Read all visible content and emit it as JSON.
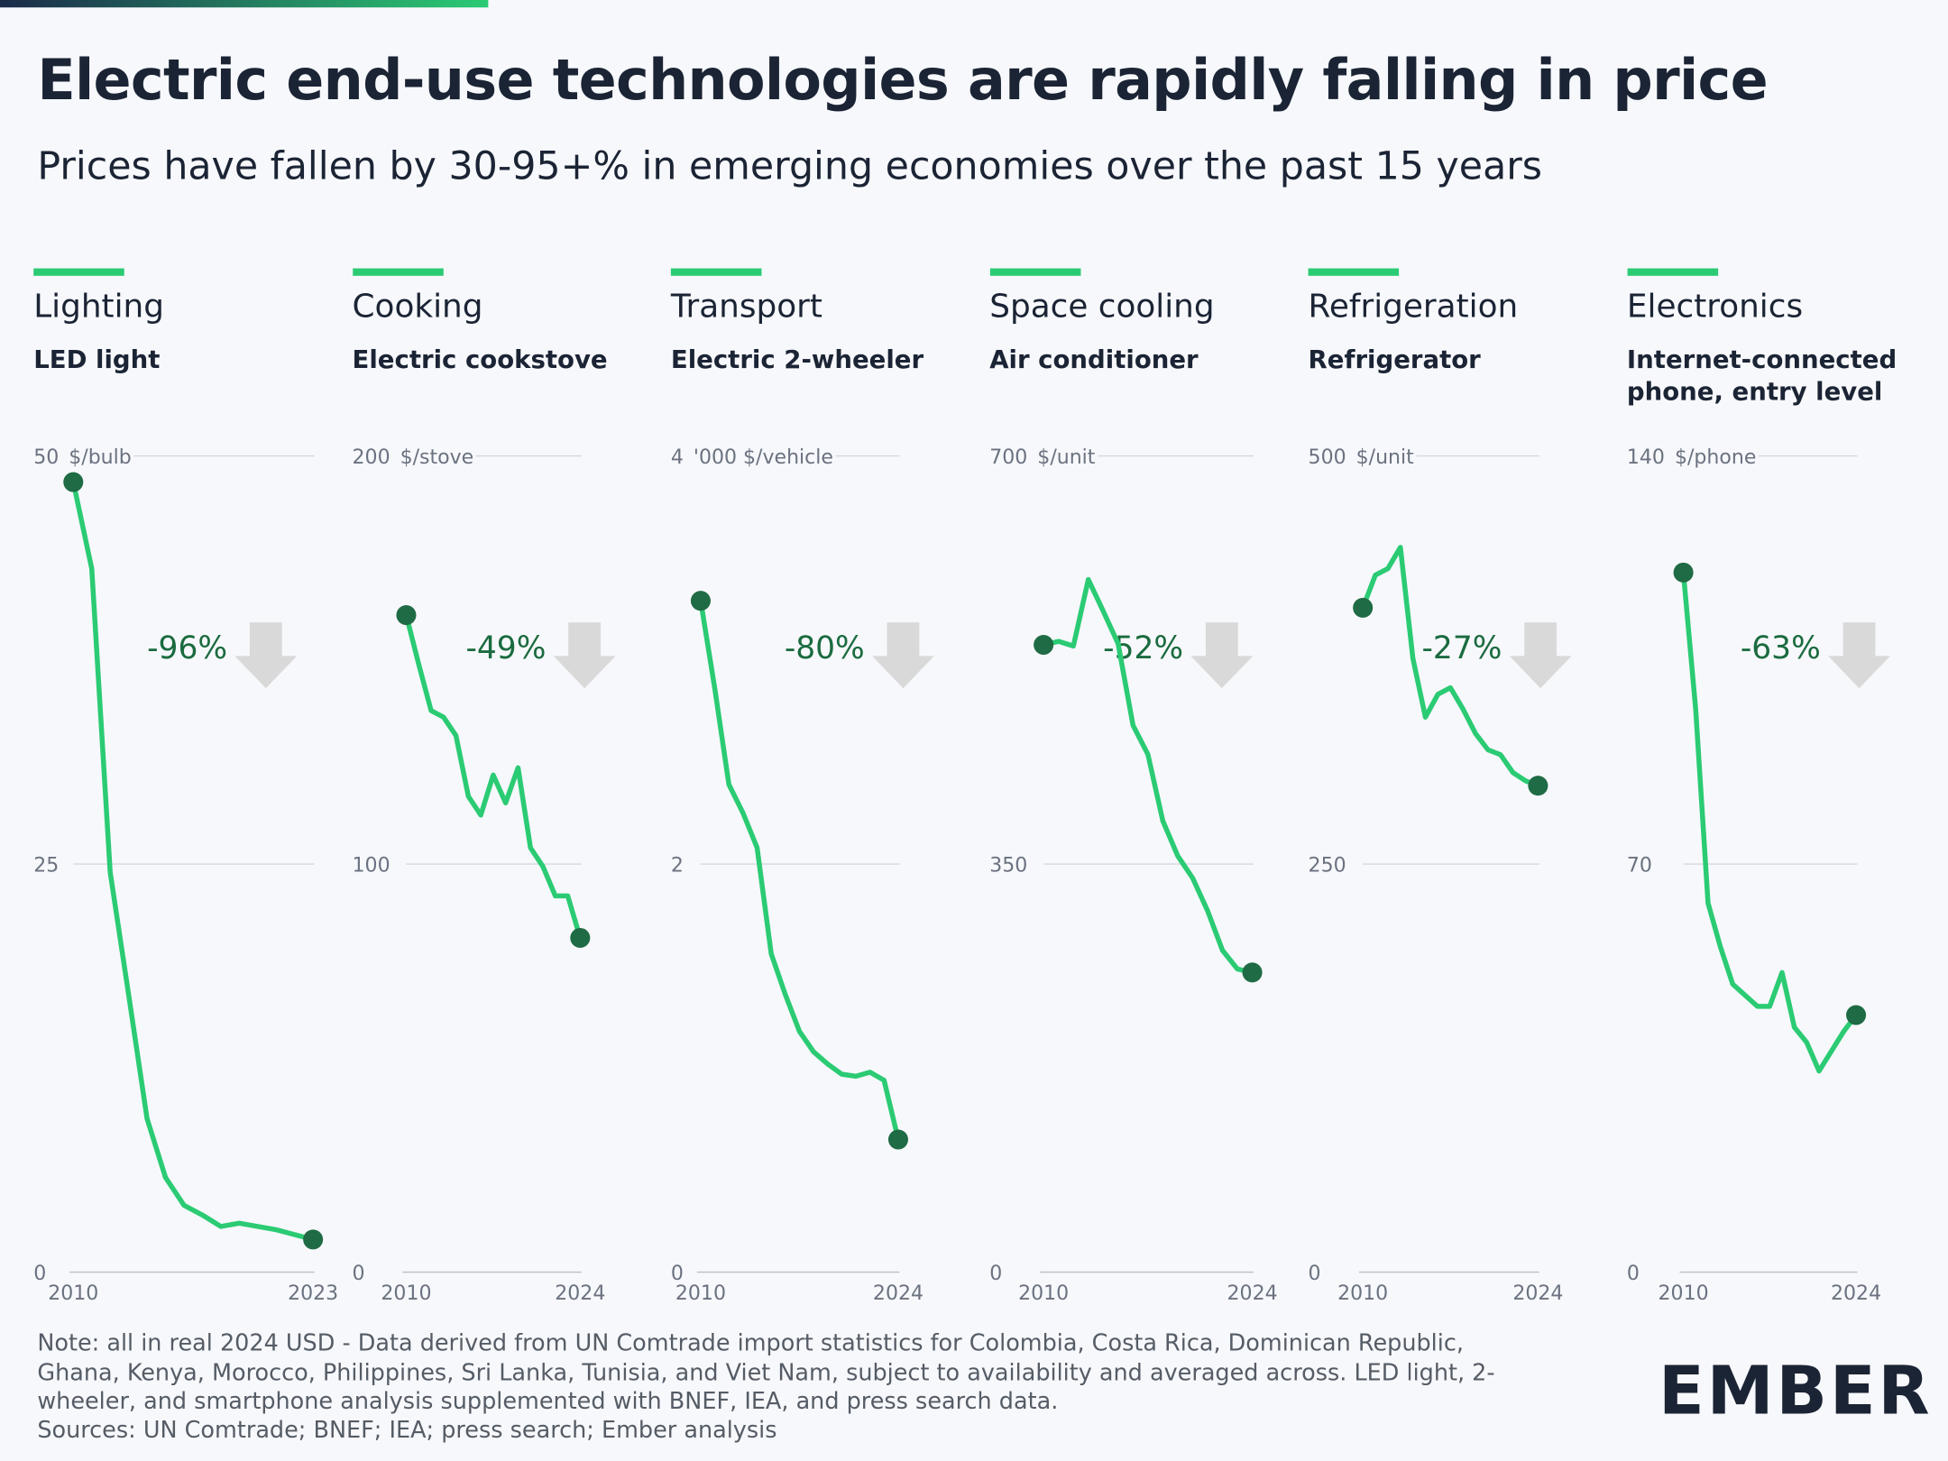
{
  "title": "Electric end-use technologies are rapidly falling in price",
  "subtitle": "Prices have fallen by 30-95+% in emerging economies over the past 15 years",
  "note": "Note: all in real 2024 USD - Data derived from UN Comtrade import statistics for Colombia, Costa Rica, Dominican Republic, Ghana, Kenya, Morocco, Philippines, Sri Lanka, Tunisia, and Viet Nam, subject to availability and averaged across. LED light, 2-wheeler, and smartphone analysis supplemented with BNEF, IEA, and press search data.",
  "sources": "Sources: UN Comtrade; BNEF; IEA; press search; Ember analysis",
  "logo": "EMBER",
  "chart_data": [
    {
      "type": "line",
      "title": "Lighting",
      "subtitle": "LED light",
      "unit": "$/bulb",
      "annotation": "-96%",
      "x": [
        2010,
        2011,
        2012,
        2013,
        2014,
        2015,
        2016,
        2017,
        2018,
        2019,
        2020,
        2021,
        2022,
        2023
      ],
      "xticks": [
        2010,
        2023
      ],
      "xlim": [
        2010,
        2023
      ],
      "series": [
        {
          "name": "LED light",
          "color": "#2bcb74",
          "values": [
            48.4,
            43.1,
            24.5,
            17,
            9.4,
            5.8,
            4.1,
            3.5,
            2.8,
            3.0,
            2.8,
            2.6,
            2.3,
            2.0
          ]
        }
      ],
      "ylim": [
        0,
        50
      ],
      "yticks": [
        0,
        25,
        50
      ],
      "grid": true
    },
    {
      "type": "line",
      "title": "Cooking",
      "subtitle": "Electric cookstove",
      "unit": "$/stove",
      "annotation": "-49%",
      "x": [
        2010,
        2011,
        2012,
        2013,
        2014,
        2015,
        2016,
        2017,
        2018,
        2019,
        2020,
        2021,
        2022,
        2023,
        2024
      ],
      "xticks": [
        2010,
        2024
      ],
      "xlim": [
        2010,
        2024
      ],
      "series": [
        {
          "name": "Electric cookstove",
          "color": "#2bcb74",
          "values": [
            161,
            149,
            137.6,
            136,
            131.5,
            116.6,
            112,
            121.8,
            115,
            123.6,
            104,
            99.4,
            92.2,
            92.2,
            81.9
          ]
        }
      ],
      "ylim": [
        0,
        200
      ],
      "yticks": [
        0,
        100,
        200
      ],
      "grid": true
    },
    {
      "type": "line",
      "title": "Transport",
      "subtitle": "Electric 2-wheeler",
      "unit": "'000 $/vehicle",
      "annotation": "-80%",
      "x": [
        2010,
        2011,
        2012,
        2013,
        2014,
        2015,
        2016,
        2017,
        2018,
        2019,
        2020,
        2021,
        2022,
        2023,
        2024
      ],
      "xticks": [
        2010,
        2024
      ],
      "xlim": [
        2010,
        2024
      ],
      "series": [
        {
          "name": "Electric 2-wheeler",
          "color": "#2bcb74",
          "values": [
            3.29,
            2.86,
            2.39,
            2.25,
            2.08,
            1.56,
            1.36,
            1.18,
            1.08,
            1.02,
            0.97,
            0.96,
            0.98,
            0.94,
            0.65
          ]
        }
      ],
      "ylim": [
        0,
        4
      ],
      "yticks": [
        0,
        2,
        4
      ],
      "grid": true
    },
    {
      "type": "line",
      "title": "Space cooling",
      "subtitle": "Air conditioner",
      "unit": "$/unit",
      "annotation": "-52%",
      "x": [
        2010,
        2011,
        2012,
        2013,
        2014,
        2015,
        2016,
        2017,
        2018,
        2019,
        2020,
        2021,
        2022,
        2023,
        2024
      ],
      "xticks": [
        2010,
        2024
      ],
      "xlim": [
        2010,
        2024
      ],
      "series": [
        {
          "name": "Air conditioner",
          "color": "#2bcb74",
          "values": [
            538,
            541,
            537,
            594,
            567,
            539,
            469,
            444,
            387,
            357,
            338,
            310,
            276,
            260,
            257
          ]
        }
      ],
      "ylim": [
        0,
        700
      ],
      "yticks": [
        0,
        350,
        700
      ],
      "grid": true
    },
    {
      "type": "line",
      "title": "Refrigeration",
      "subtitle": "Refrigerator",
      "unit": "$/unit",
      "annotation": "-27%",
      "x": [
        2010,
        2011,
        2012,
        2013,
        2014,
        2015,
        2016,
        2017,
        2018,
        2019,
        2020,
        2021,
        2022,
        2023,
        2024
      ],
      "xticks": [
        2010,
        2024
      ],
      "xlim": [
        2010,
        2024
      ],
      "series": [
        {
          "name": "Refrigerator",
          "color": "#2bcb74",
          "values": [
            407,
            427,
            431,
            444,
            376,
            340,
            354,
            358,
            345,
            330,
            320,
            317,
            306,
            301,
            298
          ]
        }
      ],
      "ylim": [
        0,
        500
      ],
      "yticks": [
        0,
        250,
        500
      ],
      "grid": true
    },
    {
      "type": "line",
      "title": "Electronics",
      "subtitle": "Internet-connected phone, entry level",
      "unit": "$/phone",
      "annotation": "-63%",
      "x": [
        2010,
        2011,
        2012,
        2013,
        2014,
        2015,
        2016,
        2017,
        2018,
        2019,
        2020,
        2021,
        2022,
        2023,
        2024
      ],
      "xticks": [
        2010,
        2024
      ],
      "xlim": [
        2010,
        2024
      ],
      "series": [
        {
          "name": "Internet-connected phone, entry level",
          "color": "#2bcb74",
          "values": [
            120,
            96.5,
            63.3,
            55.8,
            49.4,
            47.5,
            45.6,
            45.6,
            51.4,
            42,
            39.4,
            34.5,
            37.9,
            41.3,
            44.1
          ]
        }
      ],
      "ylim": [
        0,
        140
      ],
      "yticks": [
        0,
        70,
        140
      ],
      "grid": true
    }
  ]
}
